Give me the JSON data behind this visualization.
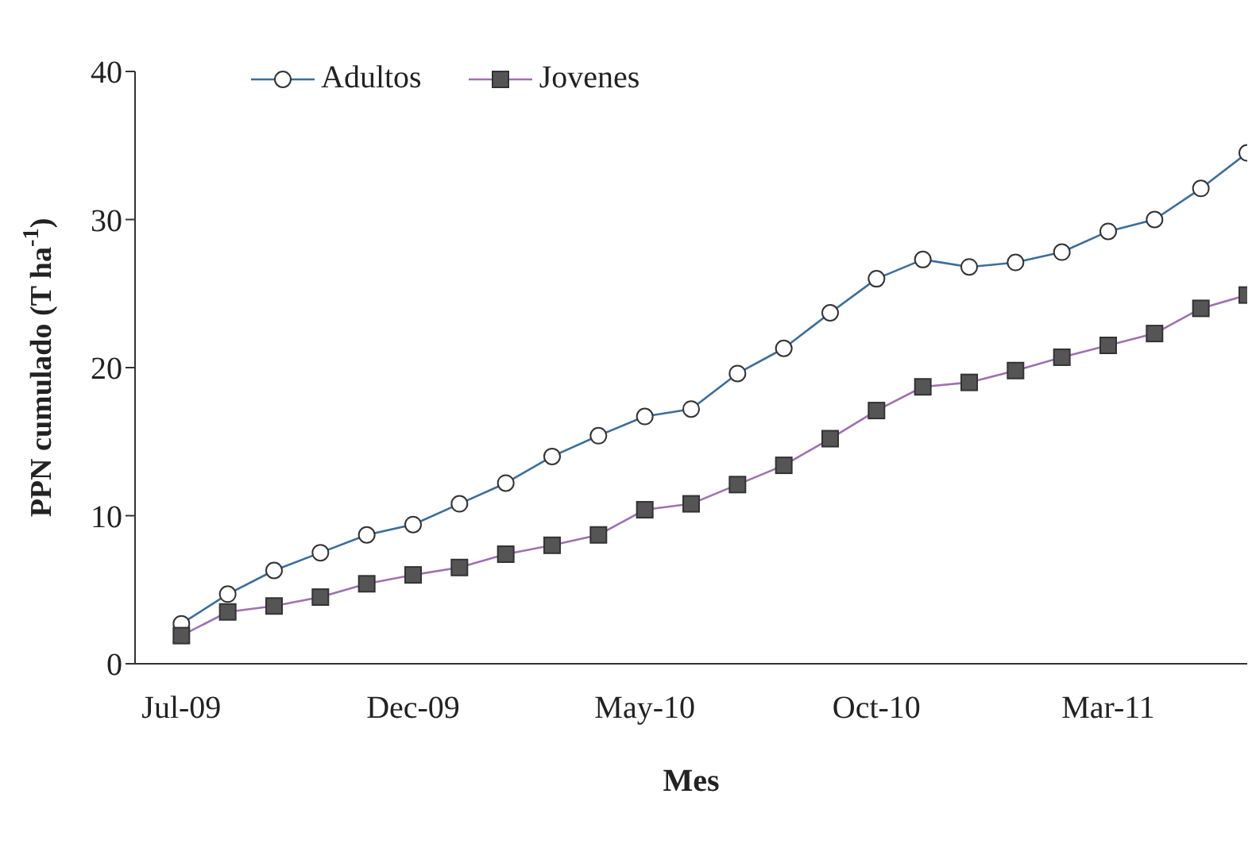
{
  "chart_data": {
    "type": "line",
    "xlabel": "Mes",
    "ylabel": "PPN cumulado (T ha$^{-1}$)",
    "categories": [
      "Jul-09",
      null,
      null,
      null,
      null,
      "Dec-09",
      null,
      null,
      null,
      null,
      "May-10",
      null,
      null,
      null,
      null,
      "Oct-10",
      null,
      null,
      null,
      null,
      "Mar-11",
      null,
      null,
      null
    ],
    "series": [
      {
        "name": "Adultos",
        "color": "#3b6e9a",
        "marker": "circle",
        "values": [
          2.7,
          4.7,
          6.3,
          7.5,
          8.7,
          9.4,
          10.8,
          12.2,
          14.0,
          15.4,
          16.7,
          17.2,
          19.6,
          21.3,
          23.7,
          26.0,
          27.3,
          26.8,
          27.1,
          27.8,
          29.2,
          30.0,
          32.1,
          34.5
        ]
      },
      {
        "name": "Jovenes",
        "color": "#a070b0",
        "marker": "square",
        "values": [
          1.9,
          3.5,
          3.9,
          4.5,
          5.4,
          6.0,
          6.5,
          7.4,
          8.0,
          8.7,
          10.4,
          10.8,
          12.1,
          13.4,
          15.2,
          17.1,
          18.7,
          19.0,
          19.8,
          20.7,
          21.5,
          22.3,
          24.0,
          24.9
        ]
      }
    ],
    "ylim": [
      0,
      40
    ],
    "yticks": [
      0,
      10,
      20,
      30,
      40
    ],
    "legend": "top left",
    "line_style": "solid"
  }
}
